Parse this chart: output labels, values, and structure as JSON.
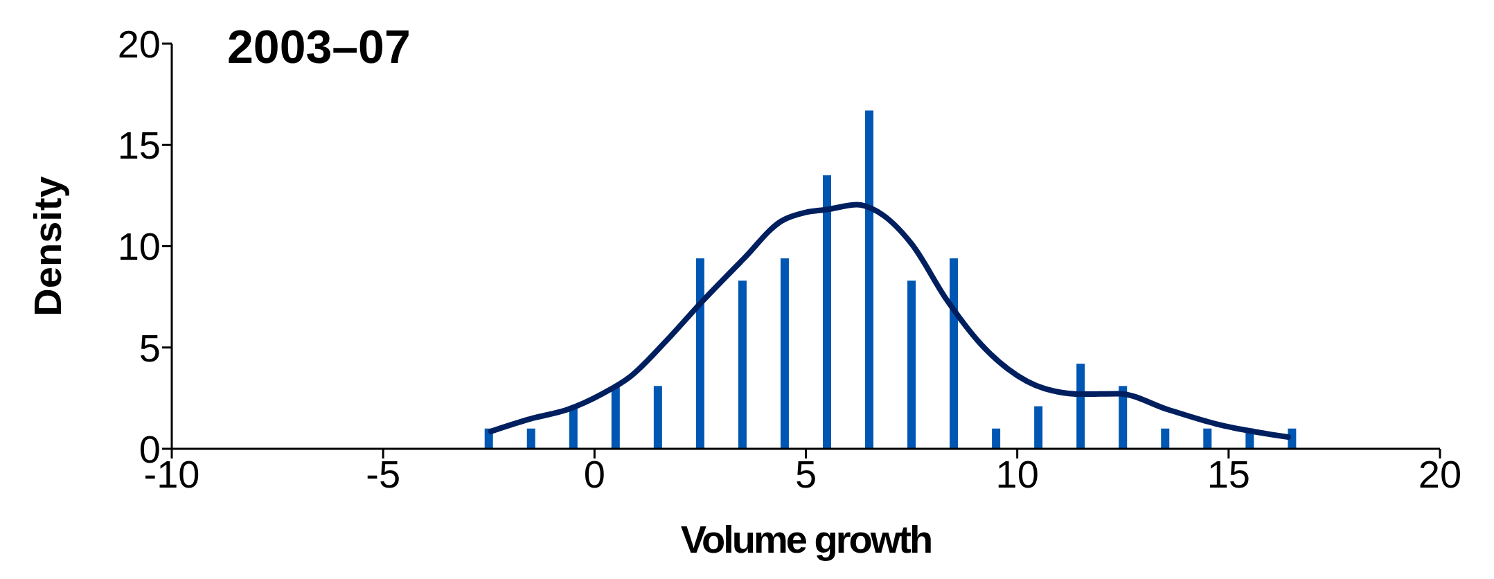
{
  "chart_data": {
    "type": "bar",
    "title": "2003–07",
    "xlabel": "Volume growth",
    "ylabel": "Density",
    "xlim": [
      -10,
      20
    ],
    "xticks": [
      -10,
      -5,
      0,
      5,
      10,
      15,
      20
    ],
    "ylim": [
      0,
      20
    ],
    "yticks": [
      0,
      5,
      10,
      15,
      20
    ],
    "series": [
      {
        "color": "#0057b3",
        "x": [
          -2.5,
          -1.5,
          -0.5,
          0.5,
          1.5,
          2.5,
          3.5,
          4.5,
          5.5,
          6.5,
          7.5,
          8.5,
          9.5,
          10.5,
          11.5,
          12.5,
          13.5,
          14.5,
          15.5,
          16.5
        ],
        "values": [
          1.0,
          1.0,
          2.1,
          3.1,
          3.1,
          9.4,
          8.3,
          9.4,
          13.5,
          16.7,
          8.3,
          9.4,
          1.0,
          2.1,
          4.2,
          3.1,
          1.0,
          1.0,
          1.0,
          1.0
        ]
      },
      {
        "type": "line",
        "color": "#001f5f",
        "x": [
          -2.45,
          -1.48,
          -0.65,
          0.18,
          0.85,
          1.68,
          2.51,
          3.51,
          4.42,
          5.0,
          5.5,
          6.21,
          6.66,
          7.5,
          8.33,
          9.16,
          9.78,
          10.65,
          11.53,
          12.4,
          13.56,
          14.72,
          16.41
        ],
        "values": [
          0.86,
          1.5,
          1.93,
          2.71,
          3.57,
          5.29,
          7.19,
          9.34,
          11.24,
          11.67,
          11.81,
          12.05,
          11.75,
          10.12,
          7.36,
          5.12,
          3.94,
          2.97,
          2.7,
          2.72,
          1.94,
          1.22,
          0.58
        ]
      }
    ]
  }
}
